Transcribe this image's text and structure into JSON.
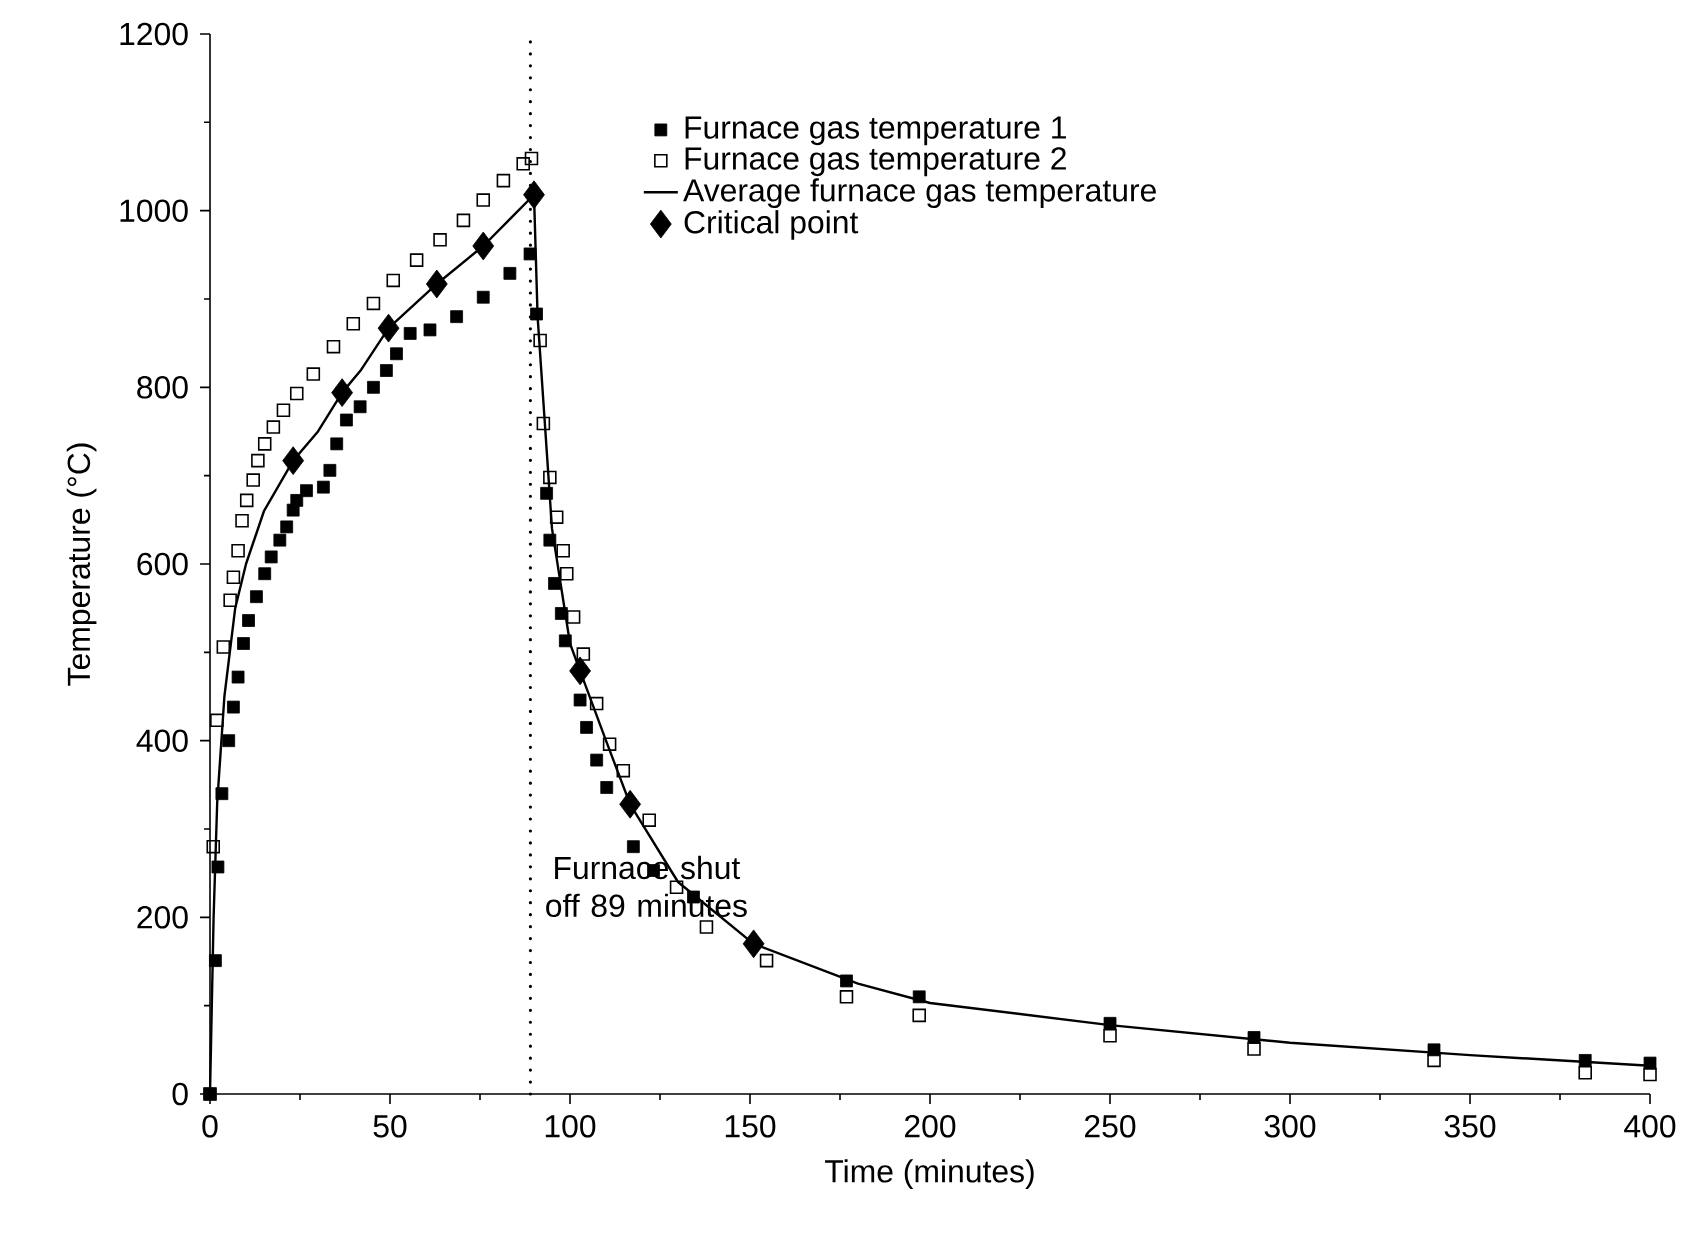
{
  "chart_data": {
    "type": "scatter",
    "xlabel": "Time (minutes)",
    "ylabel": "Temperature (°C)",
    "xlim": [
      0,
      400
    ],
    "ylim": [
      0,
      1200
    ],
    "xticks": [
      0,
      50,
      100,
      150,
      200,
      250,
      300,
      350,
      400
    ],
    "yticks": [
      0,
      200,
      400,
      600,
      800,
      1000,
      1200
    ],
    "legend": "top",
    "ref_lines": [
      {
        "axis": "x",
        "value": 89,
        "label": "Furnace shut off 89 minutes",
        "line_style": "dotted",
        "color": "#000000"
      }
    ],
    "series": [
      {
        "name": "Furnace gas temperature 1",
        "type": "scatter",
        "marker": "square",
        "color": "#000000",
        "x": [
          0,
          1.5,
          2.2,
          3.3,
          5.2,
          6.5,
          7.8,
          9.3,
          10.7,
          12.9,
          15.2,
          17,
          19.4,
          21.3,
          23.1,
          24.1,
          26.8,
          31.5,
          33.3,
          35.2,
          37.9,
          41.7,
          45.4,
          49,
          51.8,
          55.6,
          61.1,
          68.5,
          75.9,
          83.3,
          88.9,
          90.7,
          93.5,
          94.4,
          95.7,
          97.6,
          98.7,
          102.8,
          104.6,
          107.4,
          110.2,
          117.6,
          123.2,
          134.3,
          176.8,
          197,
          250,
          290,
          340,
          382,
          400
        ],
        "values": [
          0,
          151,
          257,
          340,
          400,
          438,
          472,
          510,
          536,
          563,
          589,
          608,
          627,
          642,
          661,
          672,
          683,
          687,
          706,
          736,
          763,
          778,
          800,
          819,
          838,
          861,
          865,
          880,
          902,
          929,
          951,
          883,
          680,
          627,
          578,
          544,
          513,
          446,
          415,
          378,
          347,
          280,
          253,
          223,
          128,
          110,
          80,
          64,
          50,
          38,
          35
        ]
      },
      {
        "name": "Furnace gas temperature 2",
        "type": "scatter",
        "marker": "square",
        "color": "#000000",
        "x": [
          0,
          0.9,
          1.9,
          3.7,
          5.6,
          6.5,
          7.8,
          8.9,
          10.2,
          12,
          13.3,
          15.2,
          17.6,
          20.4,
          24.1,
          28.7,
          34.3,
          39.8,
          45.4,
          50.9,
          57.4,
          63.9,
          70.4,
          75.9,
          81.5,
          87,
          89.3,
          91.7,
          92.6,
          94.4,
          96.3,
          98.1,
          99.1,
          101,
          103.7,
          107.4,
          111,
          114.8,
          122,
          129.6,
          137.9,
          154.6,
          176.8,
          197,
          250,
          290,
          340,
          382,
          400
        ],
        "values": [
          0,
          280,
          423,
          506,
          559,
          585,
          615,
          649,
          672,
          695,
          717,
          736,
          755,
          774,
          793,
          815,
          846,
          872,
          895,
          921,
          944,
          967,
          989,
          1012,
          1034,
          1053,
          1059,
          853,
          759,
          698,
          653,
          615,
          589,
          540,
          498,
          442,
          396,
          366,
          310,
          234,
          189,
          151,
          110,
          89,
          66,
          51,
          38,
          24,
          22
        ]
      },
      {
        "name": "Average furnace gas temperature",
        "type": "line",
        "marker": "none",
        "line_style": "solid",
        "color": "#000000",
        "x": [
          0,
          1,
          2,
          4,
          7,
          10,
          15,
          23.1,
          30,
          36.7,
          42,
          49.6,
          63,
          75.9,
          90,
          91,
          95,
          100,
          102.8,
          110,
          116.7,
          130,
          151,
          180,
          200,
          250,
          300,
          350,
          400
        ],
        "values": [
          0,
          200,
          330,
          450,
          550,
          600,
          660,
          717,
          750,
          794,
          820,
          867,
          917,
          960,
          1018,
          880,
          640,
          510,
          479,
          400,
          328,
          240,
          170,
          125,
          103,
          78,
          58,
          44,
          32
        ]
      },
      {
        "name": "Critical point",
        "type": "scatter",
        "marker": "diamond",
        "color": "#000000",
        "x": [
          23.1,
          36.7,
          49.6,
          63,
          75.9,
          90,
          102.8,
          116.7,
          151
        ],
        "values": [
          717,
          794,
          867,
          917,
          960,
          1018,
          479,
          328,
          170
        ]
      }
    ]
  }
}
